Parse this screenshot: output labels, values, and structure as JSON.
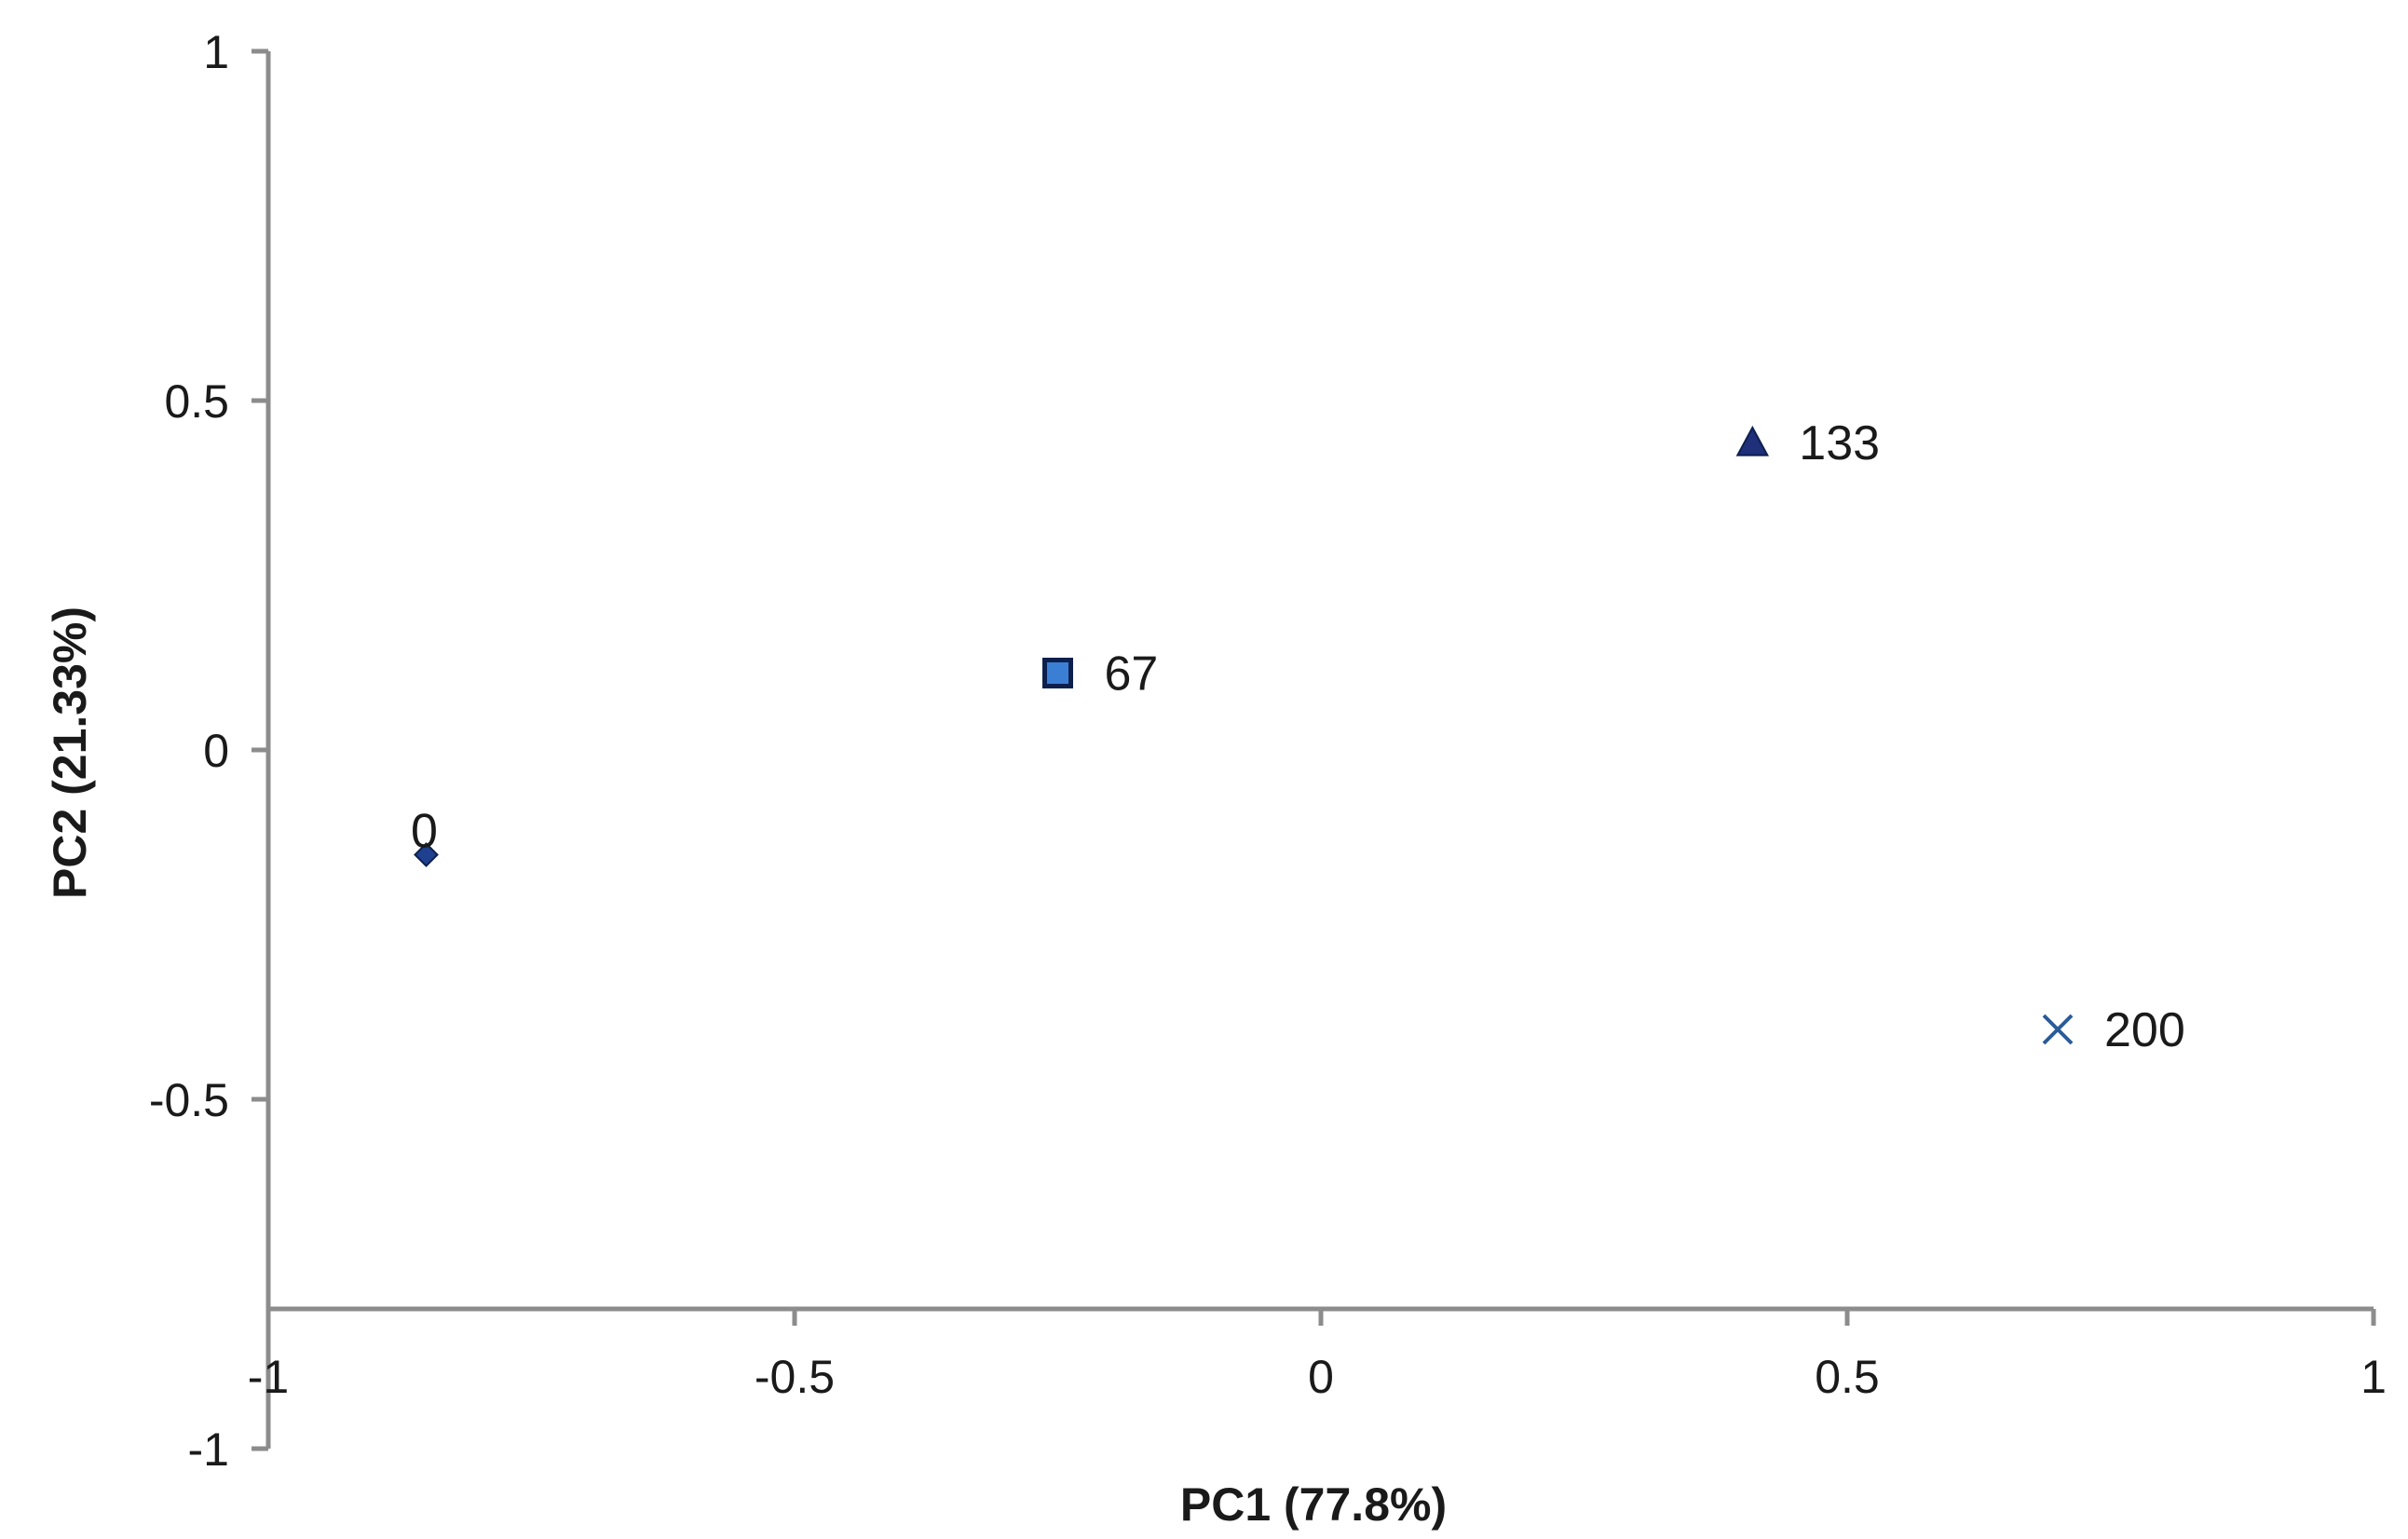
{
  "chart_data": {
    "type": "scatter",
    "title": "",
    "xlabel": "PC1 (77.8%)",
    "ylabel": "PC2 (21.33%)",
    "xlim": [
      -1,
      1
    ],
    "ylim": [
      -1,
      1
    ],
    "x_ticks": [
      "-1",
      "-0.5",
      "0",
      "0.5",
      "1"
    ],
    "y_ticks": [
      "1",
      "0.5",
      "0",
      "-0.5",
      "-1"
    ],
    "x_tick_values": [
      -1,
      -0.5,
      0,
      0.5,
      1
    ],
    "y_tick_values": [
      1,
      0.5,
      0,
      -0.5,
      -1
    ],
    "x_axis_crosses_y_at": -0.8,
    "grid": false,
    "legend": "none",
    "points": [
      {
        "label": "0",
        "x": -0.85,
        "y": -0.15,
        "marker": "diamond",
        "color": "#1f3f8f"
      },
      {
        "label": "67",
        "x": -0.25,
        "y": 0.11,
        "marker": "square",
        "color": "#1f4e9c"
      },
      {
        "label": "133",
        "x": 0.41,
        "y": 0.44,
        "marker": "triangle",
        "color": "#1f2f7a"
      },
      {
        "label": "200",
        "x": 0.7,
        "y": -0.4,
        "marker": "x",
        "color": "#2a5b9a"
      }
    ]
  }
}
